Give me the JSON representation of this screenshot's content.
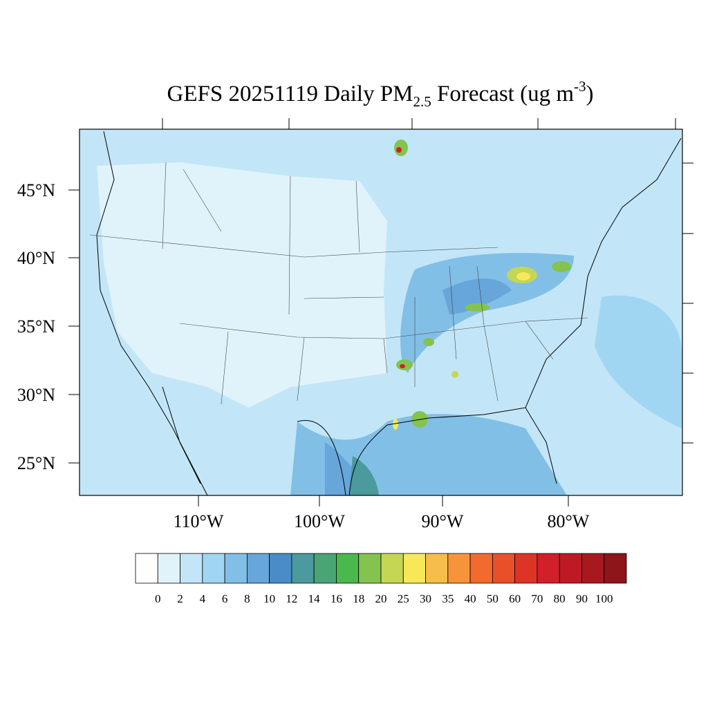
{
  "title": {
    "main": "GEFS 20251119 Daily PM",
    "sub": "2.5",
    "rest": " Forecast (ug m",
    "sup": "-3",
    "end": ")"
  },
  "map": {
    "lat_labels": [
      "45°N",
      "40°N",
      "35°N",
      "30°N",
      "25°N"
    ],
    "lon_labels": [
      "110°W",
      "100°W",
      "90°W",
      "80°W"
    ]
  },
  "colorbar": {
    "colors": [
      "#ffffff",
      "#e0f3fb",
      "#c2e6f7",
      "#a0d6f2",
      "#82bfe6",
      "#66a6da",
      "#4a8cc8",
      "#4a9a9e",
      "#4aa575",
      "#4ab84a",
      "#84c44e",
      "#c4d654",
      "#f7e85a",
      "#f7bd4a",
      "#f7943b",
      "#f26a2d",
      "#e9502a",
      "#de3426",
      "#d21f2a",
      "#be1a26",
      "#a8181f",
      "#8e1519"
    ],
    "levels": [
      0,
      2,
      4,
      6,
      8,
      10,
      12,
      14,
      16,
      18,
      20,
      25,
      30,
      35,
      40,
      50,
      60,
      70,
      80,
      90,
      100
    ]
  }
}
